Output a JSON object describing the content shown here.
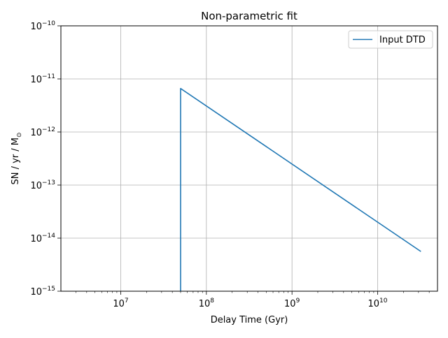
{
  "chart_data": {
    "type": "line",
    "title": "Non-parametric fit",
    "xlabel": "Delay Time (Gyr)",
    "ylabel": "SN / yr / M",
    "ylabel_subscript": "⊙",
    "xscale": "log",
    "yscale": "log",
    "xlim": [
      2000000,
      50000000000
    ],
    "ylim": [
      1e-15,
      1e-10
    ],
    "grid": true,
    "legend_loc": "top-right",
    "x_ticks": [
      {
        "value": 10000000,
        "base": "10",
        "exp": "7"
      },
      {
        "value": 100000000,
        "base": "10",
        "exp": "8"
      },
      {
        "value": 1000000000,
        "base": "10",
        "exp": "9"
      },
      {
        "value": 10000000000,
        "base": "10",
        "exp": "10"
      }
    ],
    "y_ticks": [
      {
        "value": 1e-15,
        "base": "10",
        "exp": "−15"
      },
      {
        "value": 1e-14,
        "base": "10",
        "exp": "−14"
      },
      {
        "value": 1e-13,
        "base": "10",
        "exp": "−13"
      },
      {
        "value": 1e-12,
        "base": "10",
        "exp": "−12"
      },
      {
        "value": 1e-11,
        "base": "10",
        "exp": "−11"
      },
      {
        "value": 1e-10,
        "base": "10",
        "exp": "−10"
      }
    ],
    "series": [
      {
        "name": "Input DTD",
        "color": "#1f77b4",
        "x": [
          50000000,
          50000000,
          32000000000
        ],
        "y": [
          1e-15,
          6.6e-12,
          5.6e-15
        ]
      }
    ]
  },
  "colors": {
    "series_line": "#1f77b4",
    "grid": "#b0b0b0",
    "axes": "#000000",
    "legend_border": "#cccccc"
  }
}
